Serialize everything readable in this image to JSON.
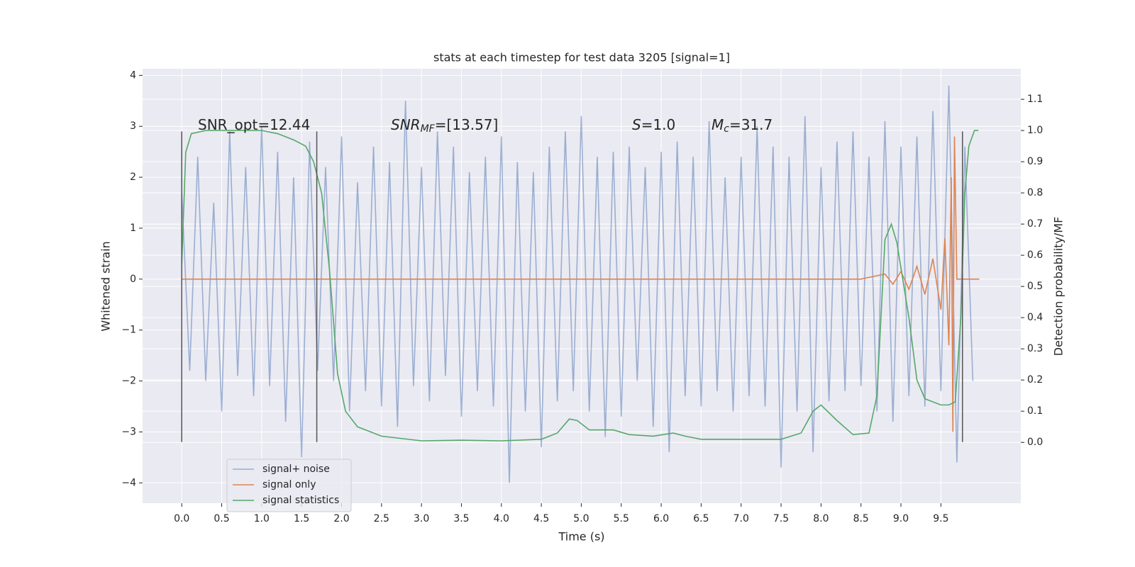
{
  "chart_data": {
    "type": "line",
    "title": "stats at each timestep for test data 3205 [signal=1]",
    "x_label": "Time (s)",
    "y_label": "Whitened strain",
    "y2_label": "Detection probability/MF",
    "xlim": [
      -0.49,
      10.5
    ],
    "ylim": [
      -4.4,
      4.13
    ],
    "y2lim": [
      -0.195,
      1.198
    ],
    "xticks": [
      {
        "value": 0,
        "label": "0.0"
      },
      0.5,
      {
        "value": 1,
        "label": "1.0"
      },
      1.5,
      {
        "value": 2,
        "label": "2.0"
      },
      2.5,
      {
        "value": 3,
        "label": "3.0"
      },
      3.5,
      {
        "value": 4,
        "label": "4.0"
      },
      4.5,
      {
        "value": 5,
        "label": "5.0"
      },
      5.5,
      {
        "value": 6,
        "label": "6.0"
      },
      6.5,
      {
        "value": 7,
        "label": "7.0"
      },
      7.5,
      {
        "value": 8,
        "label": "8.0"
      },
      8.5,
      {
        "value": 9,
        "label": "9.0"
      },
      9.5
    ],
    "yticks": [
      {
        "value": -4,
        "label": "−4"
      },
      {
        "value": -3,
        "label": "−3"
      },
      {
        "value": -2,
        "label": "−2"
      },
      {
        "value": -1,
        "label": "−1"
      },
      0,
      1,
      2,
      3,
      4
    ],
    "y2ticks": [
      {
        "value": 0,
        "label": "0.0"
      },
      0.1,
      0.2,
      0.3,
      0.4,
      0.5,
      0.6,
      0.7,
      0.8,
      0.9,
      {
        "value": 1,
        "label": "1.0"
      },
      1.1
    ],
    "grid": true,
    "legend": "lower left",
    "series": [
      {
        "name": "signal+ noise",
        "color": "#4c72b0",
        "alpha": 0.5,
        "x": [
          0,
          0.1,
          0.2,
          0.3,
          0.4,
          0.5,
          0.6,
          0.7,
          0.8,
          0.9,
          1,
          1.1,
          1.2,
          1.3,
          1.4,
          1.5,
          1.6,
          1.7,
          1.8,
          1.9,
          2,
          2.1,
          2.2,
          2.3,
          2.4,
          2.5,
          2.6,
          2.7,
          2.8,
          2.9,
          3,
          3.1,
          3.2,
          3.3,
          3.4,
          3.5,
          3.6,
          3.7,
          3.8,
          3.9,
          4,
          4.1,
          4.2,
          4.3,
          4.4,
          4.5,
          4.6,
          4.7,
          4.8,
          4.9,
          5,
          5.1,
          5.2,
          5.3,
          5.4,
          5.5,
          5.6,
          5.7,
          5.8,
          5.9,
          6,
          6.1,
          6.2,
          6.3,
          6.4,
          6.5,
          6.6,
          6.7,
          6.8,
          6.9,
          7,
          7.1,
          7.2,
          7.3,
          7.4,
          7.5,
          7.6,
          7.7,
          7.8,
          7.9,
          8,
          8.1,
          8.2,
          8.3,
          8.4,
          8.5,
          8.6,
          8.7,
          8.8,
          8.9,
          9,
          9.1,
          9.2,
          9.3,
          9.4,
          9.5,
          9.6,
          9.7,
          9.8,
          9.9
        ],
        "values": [
          1.7,
          -1.8,
          2.4,
          -2.0,
          1.5,
          -2.6,
          2.9,
          -1.9,
          2.2,
          -2.3,
          3.0,
          -2.1,
          2.5,
          -2.8,
          2.0,
          -3.5,
          2.7,
          -1.8,
          2.2,
          -2.0,
          2.8,
          -2.6,
          1.9,
          -2.2,
          2.6,
          -2.5,
          2.3,
          -2.9,
          3.5,
          -2.1,
          2.2,
          -2.4,
          2.9,
          -1.9,
          2.6,
          -2.7,
          2.1,
          -2.2,
          2.4,
          -2.5,
          2.8,
          -4.0,
          2.3,
          -2.6,
          2.1,
          -3.3,
          2.6,
          -2.4,
          2.9,
          -2.2,
          3.2,
          -2.6,
          2.4,
          -3.1,
          2.5,
          -2.7,
          2.6,
          -2.0,
          2.2,
          -2.9,
          2.5,
          -3.4,
          2.7,
          -2.3,
          2.4,
          -2.5,
          3.1,
          -2.2,
          2.0,
          -2.6,
          2.4,
          -2.3,
          3.0,
          -2.5,
          2.6,
          -3.7,
          2.4,
          -2.6,
          3.2,
          -3.4,
          2.2,
          -2.4,
          2.7,
          -2.2,
          2.9,
          -2.1,
          2.4,
          -2.6,
          3.1,
          -2.8,
          2.6,
          -2.3,
          2.8,
          -2.5,
          3.3,
          -2.2,
          3.8,
          -3.6,
          2.6,
          -2.0
        ]
      },
      {
        "name": "signal only",
        "color": "#dd8452",
        "x": [
          0,
          5,
          8.5,
          8.8,
          8.9,
          9,
          9.1,
          9.2,
          9.3,
          9.4,
          9.5,
          9.55,
          9.6,
          9.63,
          9.65,
          9.67,
          9.7,
          9.98
        ],
        "values": [
          0,
          0,
          0,
          0.1,
          -0.1,
          0.15,
          -0.2,
          0.25,
          -0.3,
          0.4,
          -0.6,
          0.8,
          -1.3,
          2.0,
          -3.0,
          2.8,
          0,
          0
        ]
      },
      {
        "name": "signal statistics",
        "color": "#55a868",
        "axis": "y2",
        "x": [
          0,
          0.05,
          0.12,
          0.3,
          1,
          1.2,
          1.4,
          1.55,
          1.65,
          1.75,
          1.85,
          1.95,
          2.05,
          2.2,
          2.5,
          3,
          3.5,
          4,
          4.5,
          4.7,
          4.85,
          4.95,
          5.1,
          5.4,
          5.6,
          5.9,
          6.15,
          6.3,
          6.5,
          7,
          7.5,
          7.75,
          7.9,
          8,
          8.2,
          8.4,
          8.6,
          8.7,
          8.8,
          8.88,
          8.95,
          9.1,
          9.2,
          9.3,
          9.5,
          9.6,
          9.68,
          9.75,
          9.8,
          9.85,
          9.92,
          9.97
        ],
        "values": [
          0.57,
          0.93,
          0.99,
          1.0,
          1.0,
          0.99,
          0.97,
          0.95,
          0.9,
          0.8,
          0.55,
          0.22,
          0.1,
          0.05,
          0.02,
          0.005,
          0.007,
          0.005,
          0.01,
          0.03,
          0.075,
          0.07,
          0.04,
          0.04,
          0.025,
          0.02,
          0.03,
          0.02,
          0.01,
          0.01,
          0.01,
          0.03,
          0.1,
          0.12,
          0.07,
          0.025,
          0.03,
          0.15,
          0.65,
          0.7,
          0.64,
          0.4,
          0.2,
          0.14,
          0.12,
          0.12,
          0.13,
          0.4,
          0.8,
          0.95,
          1.0,
          1.0
        ]
      }
    ],
    "vlines": {
      "x": [
        0,
        1.69,
        9.77
      ],
      "ymin": -3.2,
      "ymax": 2.9,
      "color": "#555555"
    },
    "annotations": [
      {
        "text": "SNR_opt=12.44"
      },
      {
        "symbol": "SNR",
        "sub": "MF",
        "text": "=[13.57]"
      },
      {
        "symbol": "S",
        "text": "=1.0"
      },
      {
        "symbol": "M",
        "sub": "c",
        "text": "=31.7"
      }
    ]
  }
}
